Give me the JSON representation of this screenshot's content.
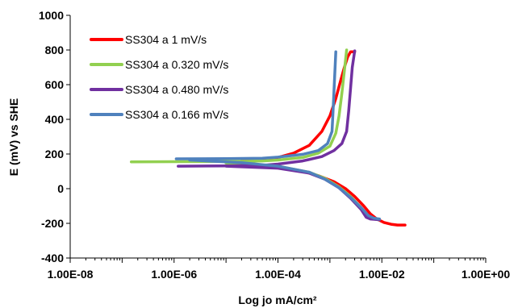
{
  "chart_data": {
    "type": "line",
    "xlabel": "Log jo mA/cm²",
    "ylabel": "E (mV) vs SHE",
    "xscale": "log",
    "xlim": [
      1e-08,
      1
    ],
    "ylim": [
      -400,
      1000
    ],
    "x_tick_labels": [
      "1.00E-08",
      "1.00E-06",
      "1.00E-04",
      "1.00E-02",
      "1.00E+00"
    ],
    "y_tick_labels": [
      "-400",
      "-200",
      "0",
      "200",
      "400",
      "600",
      "800",
      "1000"
    ],
    "legend_position": "top-left",
    "grid": false,
    "series": [
      {
        "name": "SS304 a 1 mV/s",
        "color": "#ff0000",
        "anodic": [
          [
            2e-05,
            160
          ],
          [
            5e-05,
            168
          ],
          [
            0.0001,
            180
          ],
          [
            0.0002,
            205
          ],
          [
            0.0004,
            250
          ],
          [
            0.0007,
            330
          ],
          [
            0.001,
            420
          ],
          [
            0.0013,
            520
          ],
          [
            0.0016,
            620
          ],
          [
            0.0019,
            700
          ],
          [
            0.0022,
            760
          ],
          [
            0.0025,
            790
          ],
          [
            0.003,
            790
          ]
        ],
        "cathodic": [
          [
            2e-05,
            140
          ],
          [
            5e-05,
            132
          ],
          [
            0.0001,
            122
          ],
          [
            0.0003,
            100
          ],
          [
            0.0006,
            75
          ],
          [
            0.0012,
            40
          ],
          [
            0.002,
            0
          ],
          [
            0.003,
            -45
          ],
          [
            0.0045,
            -100
          ],
          [
            0.006,
            -145
          ],
          [
            0.008,
            -175
          ],
          [
            0.011,
            -195
          ],
          [
            0.015,
            -205
          ],
          [
            0.02,
            -210
          ],
          [
            0.028,
            -210
          ]
        ]
      },
      {
        "name": "SS304 a 0.320 mV/s",
        "color": "#92d050",
        "anodic": [
          [
            1.5e-07,
            155
          ],
          [
            1e-06,
            156
          ],
          [
            1e-05,
            157
          ],
          [
            5e-05,
            160
          ],
          [
            0.0001,
            165
          ],
          [
            0.0003,
            180
          ],
          [
            0.0006,
            205
          ],
          [
            0.001,
            245
          ],
          [
            0.0013,
            320
          ],
          [
            0.0015,
            420
          ],
          [
            0.0017,
            550
          ],
          [
            0.0019,
            680
          ],
          [
            0.0021,
            800
          ]
        ],
        "cathodic": [
          [
            1e-05,
            148
          ],
          [
            0.0001,
            130
          ],
          [
            0.0004,
            95
          ],
          [
            0.0008,
            60
          ],
          [
            0.0015,
            10
          ],
          [
            0.0025,
            -45
          ],
          [
            0.004,
            -110
          ],
          [
            0.0055,
            -160
          ],
          [
            0.007,
            -175
          ],
          [
            0.009,
            -180
          ]
        ]
      },
      {
        "name": "SS304 a 0.480 mV/s",
        "color": "#7030a0",
        "anodic": [
          [
            1.2e-06,
            130
          ],
          [
            1e-05,
            131
          ],
          [
            5e-05,
            135
          ],
          [
            0.0001,
            142
          ],
          [
            0.0003,
            160
          ],
          [
            0.0007,
            185
          ],
          [
            0.0012,
            220
          ],
          [
            0.0017,
            260
          ],
          [
            0.0021,
            330
          ],
          [
            0.0023,
            450
          ],
          [
            0.0025,
            580
          ],
          [
            0.0027,
            700
          ],
          [
            0.003,
            795
          ]
        ],
        "cathodic": [
          [
            1e-05,
            130
          ],
          [
            0.0001,
            118
          ],
          [
            0.0004,
            90
          ],
          [
            0.0008,
            55
          ],
          [
            0.0015,
            5
          ],
          [
            0.0025,
            -55
          ],
          [
            0.004,
            -120
          ],
          [
            0.005,
            -165
          ],
          [
            0.006,
            -175
          ],
          [
            0.008,
            -178
          ],
          [
            0.009,
            -180
          ]
        ]
      },
      {
        "name": "SS304 a 0.166 mV/s",
        "color": "#4f81bd",
        "anodic": [
          [
            1.1e-06,
            172
          ],
          [
            1e-05,
            173
          ],
          [
            5e-05,
            176
          ],
          [
            0.0001,
            182
          ],
          [
            0.0003,
            198
          ],
          [
            0.0006,
            220
          ],
          [
            0.0009,
            260
          ],
          [
            0.0011,
            330
          ],
          [
            0.00115,
            450
          ],
          [
            0.0012,
            570
          ],
          [
            0.00125,
            680
          ],
          [
            0.0013,
            790
          ]
        ],
        "cathodic": [
          [
            2e-06,
            165
          ],
          [
            2e-05,
            150
          ],
          [
            0.0001,
            130
          ],
          [
            0.0004,
            95
          ],
          [
            0.0008,
            55
          ],
          [
            0.0015,
            5
          ],
          [
            0.0025,
            -50
          ],
          [
            0.004,
            -110
          ],
          [
            0.0055,
            -155
          ],
          [
            0.007,
            -170
          ],
          [
            0.009,
            -175
          ]
        ]
      }
    ]
  }
}
